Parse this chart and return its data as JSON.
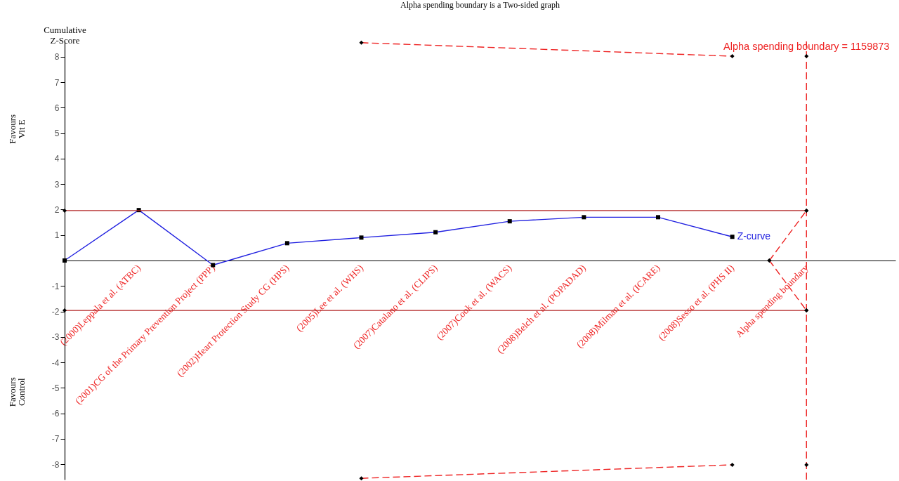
{
  "chart_data": {
    "type": "line",
    "title": "Alpha spending boundary is a Two-sided graph",
    "ylabel": "Cumulative Z-Score",
    "annotations": [
      {
        "text": "Alpha spending boundary = 1159873",
        "x": "Alpha spending boundary",
        "y": 8.02
      },
      "Favours Vit E",
      "Favours Control"
    ],
    "categories": [
      null,
      null,
      "(2000)Leppala et al. (ATBC)",
      null,
      "(2001)CG of the Primary Prevention Project (PPP)",
      null,
      "(2002)Heart Protection Study CG (HPS)",
      null,
      "(2005)Lee et al. (WHS)",
      null,
      "(2007)Catalano et al. (CLIPS)",
      null,
      "(2007)Cook et al. (WACS)",
      null,
      "(2008)Belch et al. (POPADAD)",
      null,
      "(2008)Milman et al. (ICARE)",
      null,
      "(2008)Sesso et al. (PHS II)",
      null,
      "Alpha spending boundary"
    ],
    "ylim": [
      -8.6,
      8.6
    ],
    "yticks": [
      -8,
      -7,
      -6,
      -5,
      -4,
      -3,
      -2,
      -1,
      1,
      2,
      3,
      4,
      5,
      6,
      7,
      8
    ],
    "ref_lines": [
      {
        "axis": "x",
        "value": "Alpha spending boundary",
        "color": "#ee2222",
        "line_style": "dashed"
      }
    ],
    "series": [
      {
        "name": "Z-curve",
        "color": "#2020e0",
        "values": [
          0,
          null,
          1.98,
          null,
          -0.18,
          null,
          0.68,
          null,
          0.9,
          null,
          1.11,
          null,
          1.54,
          null,
          1.7,
          null,
          1.7,
          null,
          0.93,
          null,
          null
        ],
        "marker": "square",
        "line_style": "solid"
      },
      {
        "color": "#b22222",
        "values": [
          1.96,
          null,
          null,
          null,
          null,
          null,
          null,
          null,
          null,
          null,
          null,
          null,
          null,
          null,
          null,
          null,
          null,
          null,
          null,
          null,
          1.96
        ],
        "marker": "diamond",
        "line_style": "solid"
      },
      {
        "color": "#b22222",
        "values": [
          -1.96,
          null,
          null,
          null,
          null,
          null,
          null,
          null,
          null,
          null,
          null,
          null,
          null,
          null,
          null,
          null,
          null,
          null,
          null,
          null,
          -1.96
        ],
        "marker": "diamond",
        "line_style": "solid"
      },
      {
        "color": "#ee2222",
        "values": [
          null,
          null,
          null,
          null,
          null,
          null,
          null,
          null,
          8.55,
          null,
          null,
          null,
          null,
          null,
          null,
          null,
          null,
          null,
          8.02,
          null,
          null
        ],
        "marker": "diamond",
        "line_style": "dashed"
      },
      {
        "color": "#ee2222",
        "values": [
          null,
          null,
          null,
          null,
          null,
          null,
          null,
          null,
          -8.55,
          null,
          null,
          null,
          null,
          null,
          null,
          null,
          null,
          null,
          -8.02,
          null,
          null
        ],
        "marker": "diamond",
        "line_style": "dashed"
      },
      {
        "color": "#ee2222",
        "values": [
          null,
          null,
          null,
          null,
          null,
          null,
          null,
          null,
          null,
          null,
          null,
          null,
          null,
          null,
          null,
          null,
          null,
          null,
          null,
          0,
          1.96
        ],
        "marker": "diamond",
        "line_style": "dashed"
      },
      {
        "color": "#ee2222",
        "values": [
          null,
          null,
          null,
          null,
          null,
          null,
          null,
          null,
          null,
          null,
          null,
          null,
          null,
          null,
          null,
          null,
          null,
          null,
          null,
          0,
          -1.96
        ],
        "marker": "diamond",
        "line_style": "dashed"
      },
      {
        "type": "scatter",
        "color": "#000000",
        "values": [
          null,
          null,
          null,
          null,
          null,
          null,
          null,
          null,
          null,
          null,
          null,
          null,
          null,
          null,
          null,
          null,
          null,
          null,
          null,
          null,
          8.02
        ],
        "marker": "diamond"
      },
      {
        "type": "scatter",
        "color": "#000000",
        "values": [
          null,
          null,
          null,
          null,
          null,
          null,
          null,
          null,
          null,
          null,
          null,
          null,
          null,
          null,
          null,
          null,
          null,
          null,
          null,
          null,
          -8.02
        ],
        "marker": "diamond"
      }
    ]
  }
}
